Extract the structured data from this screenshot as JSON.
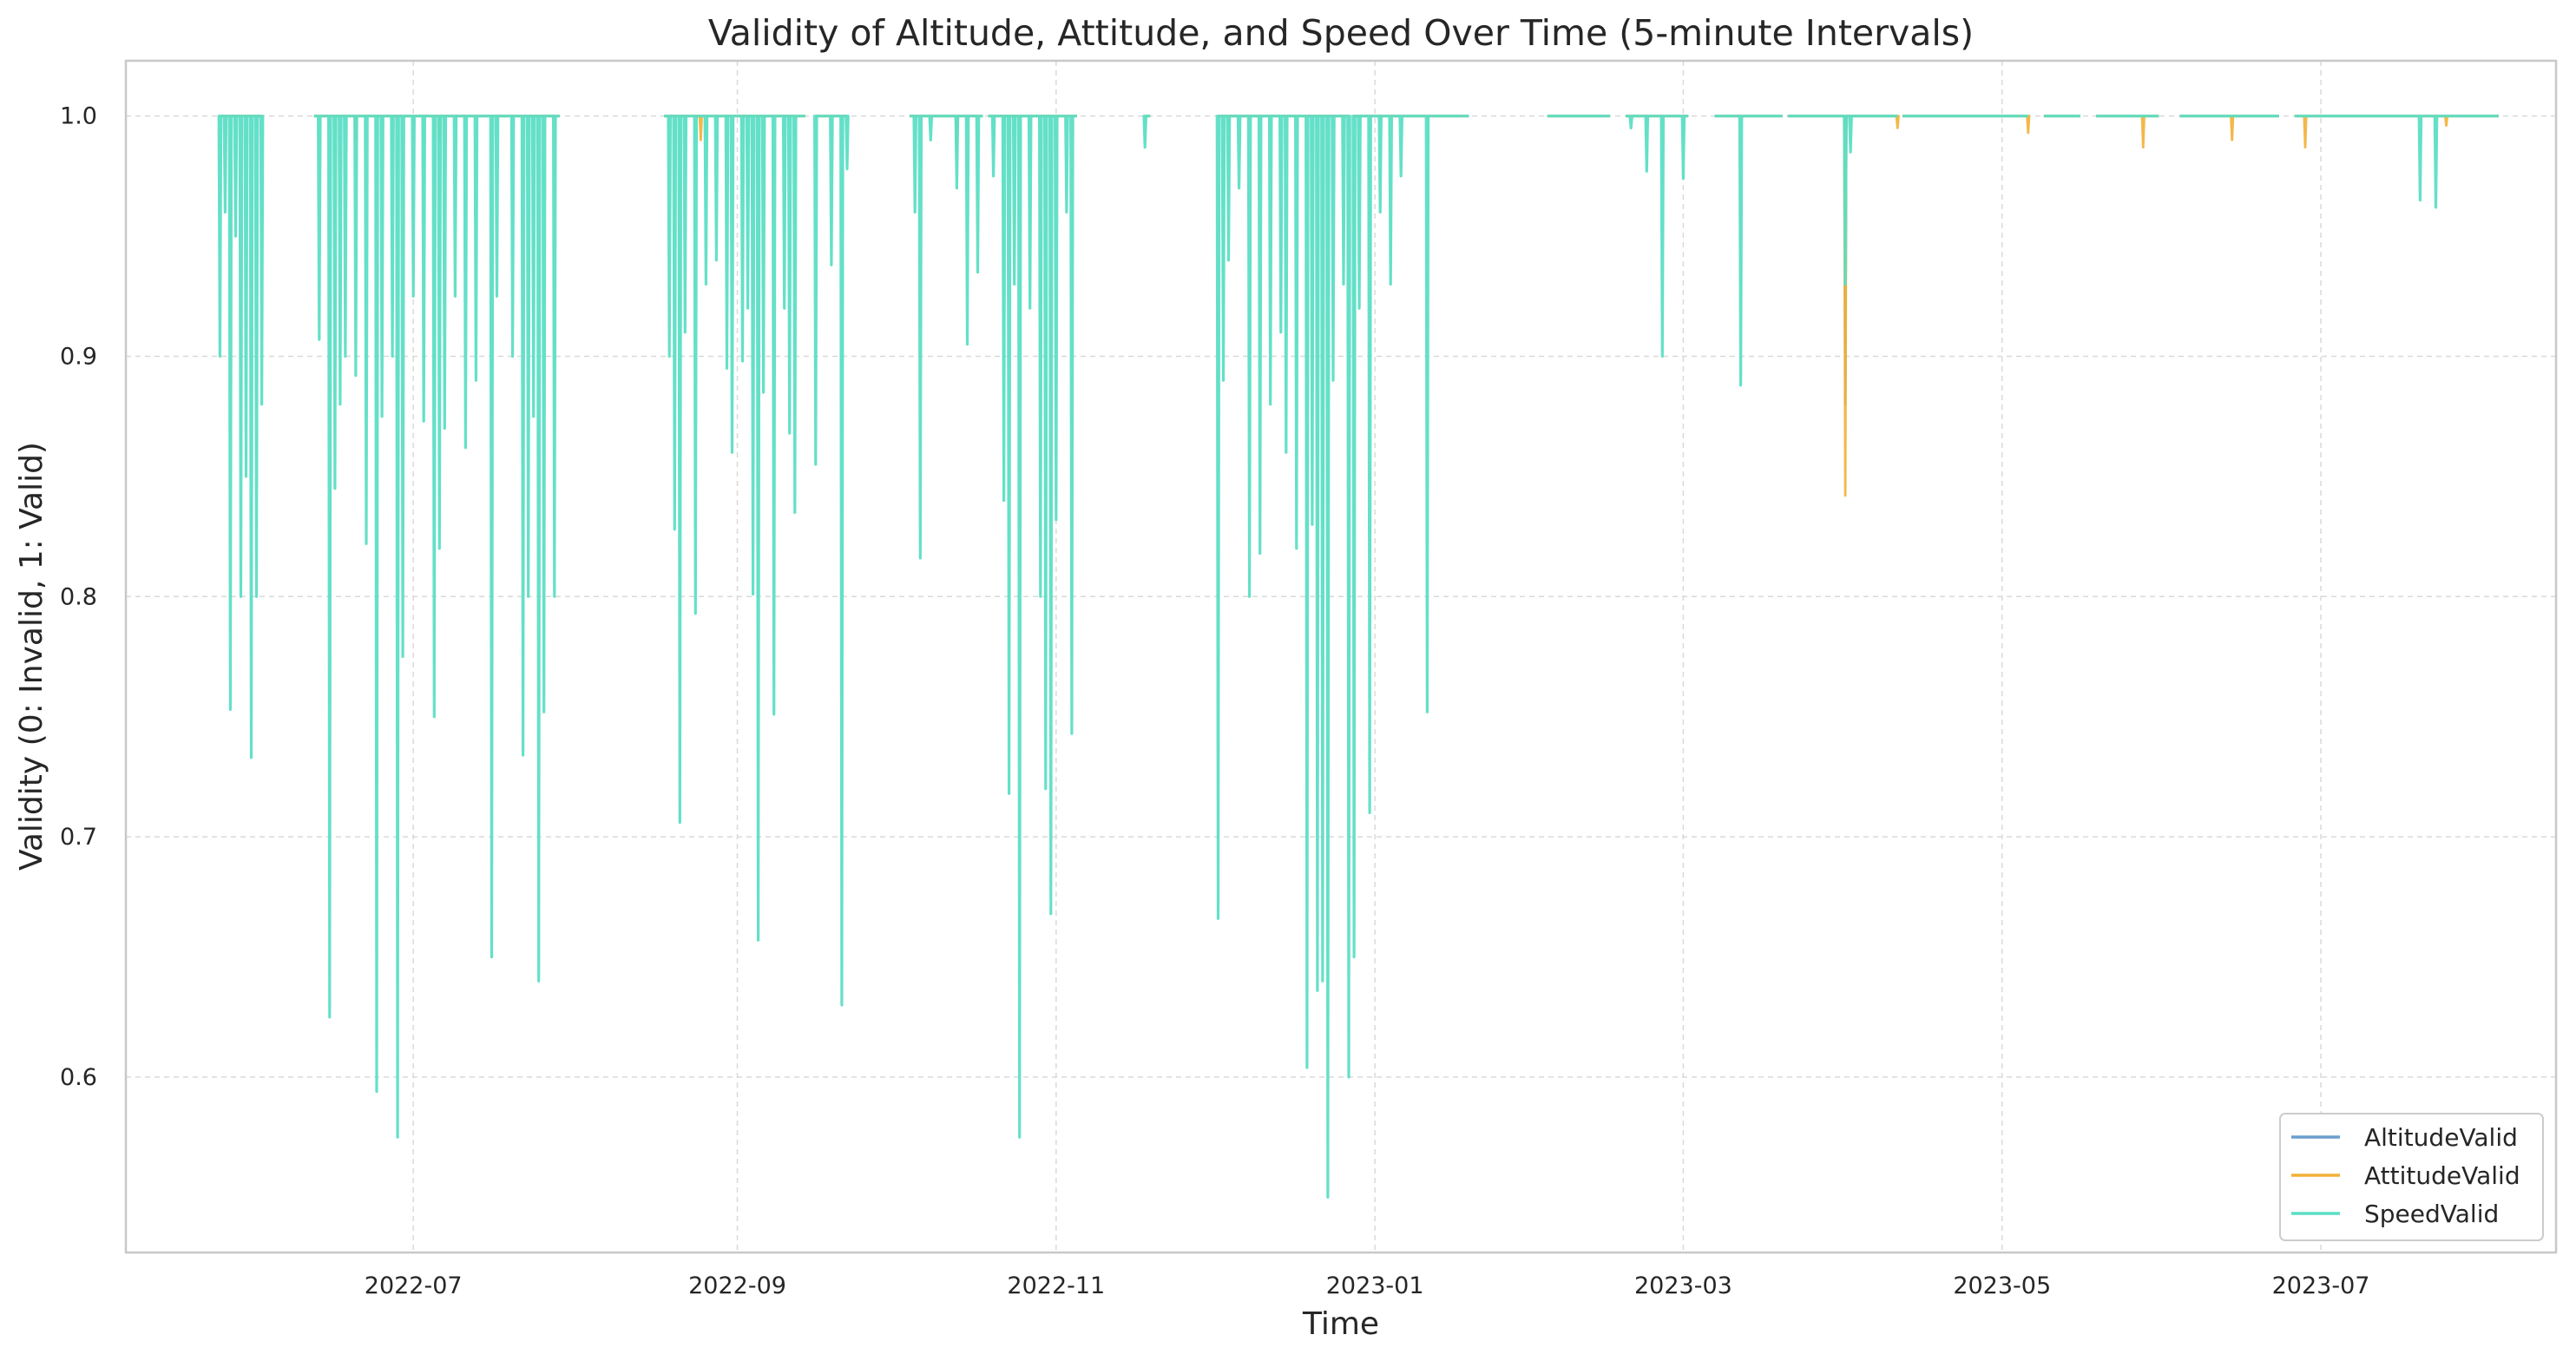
{
  "chart_data": {
    "type": "line",
    "title": "Validity of Altitude, Attitude, and Speed Over Time (5-minute Intervals)",
    "xlabel": "Time",
    "ylabel": "Validity (0: Invalid, 1: Valid)",
    "xlim": [
      "2022-05-07",
      "2023-08-15"
    ],
    "ylim": [
      0.527,
      1.023
    ],
    "grid": true,
    "legend_position": "lower-right",
    "x_ticks": [
      "2022-07-01",
      "2022-09-01",
      "2022-11-01",
      "2023-01-01",
      "2023-03-01",
      "2023-05-01",
      "2023-07-01"
    ],
    "x_tick_labels": [
      "2022-07",
      "2022-09",
      "2022-11",
      "2023-01",
      "2023-03",
      "2023-05",
      "2023-07"
    ],
    "y_ticks": [
      0.6,
      0.7,
      0.8,
      0.9,
      1.0
    ],
    "y_tick_labels": [
      "0.6",
      "0.7",
      "0.8",
      "0.9",
      "1.0"
    ],
    "coverage": [
      [
        "2022-05-25",
        "2022-06-02"
      ],
      [
        "2022-06-12",
        "2022-07-29"
      ],
      [
        "2022-08-18",
        "2022-09-14"
      ],
      [
        "2022-09-16",
        "2022-09-22"
      ],
      [
        "2022-10-04",
        "2022-10-18"
      ],
      [
        "2022-10-19",
        "2022-11-05"
      ],
      [
        "2022-11-18",
        "2022-11-19"
      ],
      [
        "2022-12-02",
        "2022-12-27"
      ],
      [
        "2022-12-28",
        "2023-01-19"
      ],
      [
        "2023-02-03",
        "2023-02-15"
      ],
      [
        "2023-02-18",
        "2023-03-02"
      ],
      [
        "2023-03-07",
        "2023-03-20"
      ],
      [
        "2023-03-21",
        "2023-04-11"
      ],
      [
        "2023-04-12",
        "2023-05-06"
      ],
      [
        "2023-05-09",
        "2023-05-16"
      ],
      [
        "2023-05-19",
        "2023-05-31"
      ],
      [
        "2023-06-04",
        "2023-06-23"
      ],
      [
        "2023-06-26",
        "2023-08-04"
      ]
    ],
    "series": [
      {
        "name": "AltitudeValid",
        "color": "#6a9fcf",
        "dips": [
          [
            "2023-04-01",
            0.88
          ]
        ]
      },
      {
        "name": "AttitudeValid",
        "color": "#f2b035",
        "dips": [
          [
            "2022-06-20",
            0.99
          ],
          [
            "2022-07-06",
            0.99
          ],
          [
            "2022-08-25",
            0.99
          ],
          [
            "2022-10-13",
            0.985
          ],
          [
            "2023-04-01",
            0.842
          ],
          [
            "2023-04-11",
            0.995
          ],
          [
            "2023-05-06",
            0.993
          ],
          [
            "2023-05-18",
            0.995
          ],
          [
            "2023-05-28",
            0.987
          ],
          [
            "2023-06-14",
            0.99
          ],
          [
            "2023-06-28",
            0.987
          ],
          [
            "2023-07-25",
            0.996
          ]
        ]
      },
      {
        "name": "SpeedValid",
        "color": "#5cdec5",
        "dips": [
          [
            "2022-05-25",
            0.9
          ],
          [
            "2022-05-26",
            0.96
          ],
          [
            "2022-05-27",
            0.753
          ],
          [
            "2022-05-28",
            0.95
          ],
          [
            "2022-05-29",
            0.8
          ],
          [
            "2022-05-30",
            0.85
          ],
          [
            "2022-05-31",
            0.733
          ],
          [
            "2022-06-01",
            0.8
          ],
          [
            "2022-06-02",
            0.88
          ],
          [
            "2022-06-03",
            0.783
          ],
          [
            "2022-06-13",
            0.907
          ],
          [
            "2022-06-15",
            0.625
          ],
          [
            "2022-06-16",
            0.845
          ],
          [
            "2022-06-17",
            0.88
          ],
          [
            "2022-06-18",
            0.9
          ],
          [
            "2022-06-20",
            0.892
          ],
          [
            "2022-06-22",
            0.822
          ],
          [
            "2022-06-24",
            0.594
          ],
          [
            "2022-06-25",
            0.875
          ],
          [
            "2022-06-27",
            0.9
          ],
          [
            "2022-06-28",
            0.575
          ],
          [
            "2022-06-29",
            0.775
          ],
          [
            "2022-07-01",
            0.925
          ],
          [
            "2022-07-03",
            0.873
          ],
          [
            "2022-07-05",
            0.75
          ],
          [
            "2022-07-06",
            0.82
          ],
          [
            "2022-07-07",
            0.87
          ],
          [
            "2022-07-09",
            0.925
          ],
          [
            "2022-07-11",
            0.862
          ],
          [
            "2022-07-13",
            0.89
          ],
          [
            "2022-07-16",
            0.65
          ],
          [
            "2022-07-17",
            0.925
          ],
          [
            "2022-07-20",
            0.9
          ],
          [
            "2022-07-22",
            0.734
          ],
          [
            "2022-07-23",
            0.8
          ],
          [
            "2022-07-24",
            0.875
          ],
          [
            "2022-07-25",
            0.64
          ],
          [
            "2022-07-26",
            0.752
          ],
          [
            "2022-07-28",
            0.8
          ],
          [
            "2022-08-19",
            0.9
          ],
          [
            "2022-08-20",
            0.828
          ],
          [
            "2022-08-21",
            0.706
          ],
          [
            "2022-08-22",
            0.91
          ],
          [
            "2022-08-24",
            0.793
          ],
          [
            "2022-08-26",
            0.93
          ],
          [
            "2022-08-28",
            0.94
          ],
          [
            "2022-08-30",
            0.895
          ],
          [
            "2022-08-31",
            0.86
          ],
          [
            "2022-09-02",
            0.898
          ],
          [
            "2022-09-03",
            0.92
          ],
          [
            "2022-09-04",
            0.801
          ],
          [
            "2022-09-05",
            0.657
          ],
          [
            "2022-09-06",
            0.885
          ],
          [
            "2022-09-08",
            0.751
          ],
          [
            "2022-09-10",
            0.92
          ],
          [
            "2022-09-11",
            0.868
          ],
          [
            "2022-09-12",
            0.835
          ],
          [
            "2022-09-16",
            0.855
          ],
          [
            "2022-09-19",
            0.938
          ],
          [
            "2022-09-21",
            0.63
          ],
          [
            "2022-09-22",
            0.978
          ],
          [
            "2022-10-05",
            0.96
          ],
          [
            "2022-10-06",
            0.816
          ],
          [
            "2022-10-08",
            0.99
          ],
          [
            "2022-10-13",
            0.97
          ],
          [
            "2022-10-15",
            0.905
          ],
          [
            "2022-10-17",
            0.935
          ],
          [
            "2022-10-20",
            0.975
          ],
          [
            "2022-10-22",
            0.84
          ],
          [
            "2022-10-23",
            0.718
          ],
          [
            "2022-10-24",
            0.93
          ],
          [
            "2022-10-25",
            0.575
          ],
          [
            "2022-10-27",
            0.92
          ],
          [
            "2022-10-29",
            0.8
          ],
          [
            "2022-10-30",
            0.72
          ],
          [
            "2022-10-31",
            0.668
          ],
          [
            "2022-11-01",
            0.832
          ],
          [
            "2022-11-03",
            0.96
          ],
          [
            "2022-11-04",
            0.743
          ],
          [
            "2022-11-06",
            0.955
          ],
          [
            "2022-11-08",
            0.93
          ],
          [
            "2022-11-10",
            0.885
          ],
          [
            "2022-11-11",
            0.875
          ],
          [
            "2022-11-12",
            0.92
          ],
          [
            "2022-11-13",
            0.9
          ],
          [
            "2022-11-14",
            0.88
          ],
          [
            "2022-11-18",
            0.987
          ],
          [
            "2022-11-23",
            0.724
          ],
          [
            "2022-12-02",
            0.666
          ],
          [
            "2022-12-03",
            0.89
          ],
          [
            "2022-12-04",
            0.94
          ],
          [
            "2022-12-06",
            0.97
          ],
          [
            "2022-12-08",
            0.8
          ],
          [
            "2022-12-10",
            0.818
          ],
          [
            "2022-12-12",
            0.88
          ],
          [
            "2022-12-14",
            0.91
          ],
          [
            "2022-12-15",
            0.86
          ],
          [
            "2022-12-17",
            0.82
          ],
          [
            "2022-12-19",
            0.604
          ],
          [
            "2022-12-20",
            0.83
          ],
          [
            "2022-12-21",
            0.636
          ],
          [
            "2022-12-22",
            0.64
          ],
          [
            "2022-12-23",
            0.55
          ],
          [
            "2022-12-24",
            0.89
          ],
          [
            "2022-12-26",
            0.93
          ],
          [
            "2022-12-27",
            0.6
          ],
          [
            "2022-12-28",
            0.65
          ],
          [
            "2022-12-29",
            0.92
          ],
          [
            "2022-12-31",
            0.71
          ],
          [
            "2023-01-02",
            0.96
          ],
          [
            "2023-01-04",
            0.93
          ],
          [
            "2023-01-06",
            0.975
          ],
          [
            "2023-01-11",
            0.752
          ],
          [
            "2023-02-19",
            0.995
          ],
          [
            "2023-02-22",
            0.977
          ],
          [
            "2023-02-25",
            0.9
          ],
          [
            "2023-03-01",
            0.974
          ],
          [
            "2023-03-12",
            0.888
          ],
          [
            "2023-04-01",
            0.93
          ],
          [
            "2023-04-02",
            0.985
          ],
          [
            "2023-07-20",
            0.965
          ],
          [
            "2023-07-23",
            0.962
          ]
        ]
      }
    ]
  }
}
